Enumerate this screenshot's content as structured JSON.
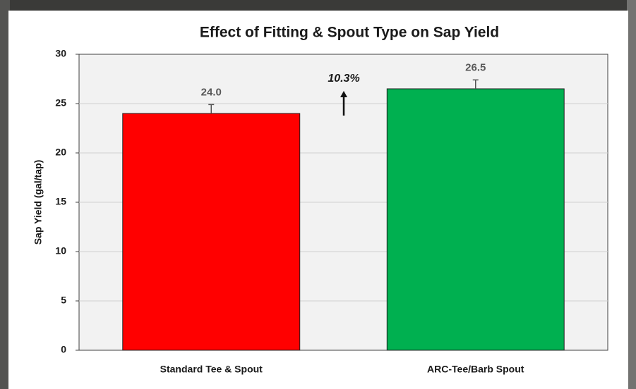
{
  "chart_data": {
    "type": "bar",
    "title": "Effect of Fitting & Spout Type on Sap Yield",
    "ylabel": "Sap Yield (gal/tap)",
    "categories": [
      "Standard Tee & Spout",
      "ARC-Tee/Barb Spout"
    ],
    "values": [
      24.0,
      26.5
    ],
    "value_labels": [
      "24.0",
      "26.5"
    ],
    "errors": [
      0.9,
      0.9
    ],
    "colors": [
      "#ff0000",
      "#00b050"
    ],
    "annotation": "10.3%",
    "ylim": [
      0,
      30
    ],
    "yticks": [
      0,
      5,
      10,
      15,
      20,
      25,
      30
    ],
    "grid": true
  }
}
